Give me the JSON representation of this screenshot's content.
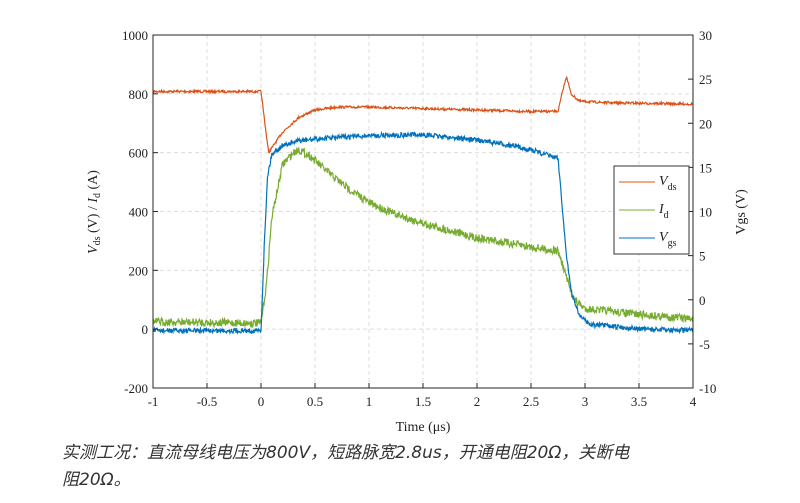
{
  "chart_data": {
    "type": "line",
    "title": "",
    "xlabel": "Time (μs)",
    "ylabel_left": "Vds (V) / Id (A)",
    "ylabel_right": "Vgs (V)",
    "xlim": [
      -1,
      4
    ],
    "ylim_left": [
      -200,
      1000
    ],
    "ylim_right": [
      -10,
      30
    ],
    "xticks": [
      "-1",
      "-0.5",
      "0",
      "0.5",
      "1",
      "1.5",
      "2",
      "2.5",
      "3",
      "3.5",
      "4"
    ],
    "yticks_left": [
      "-200",
      "0",
      "200",
      "400",
      "600",
      "800",
      "1000"
    ],
    "yticks_right": [
      "-10",
      "-5",
      "0",
      "5",
      "10",
      "15",
      "20",
      "25",
      "30"
    ],
    "grid": true,
    "legend_placement": "right",
    "series": [
      {
        "name": "Vds",
        "axis": "left",
        "color": "#d95319",
        "x": [
          -1,
          0,
          0.07,
          0.2,
          0.35,
          0.5,
          0.7,
          1,
          1.5,
          2,
          2.5,
          2.75,
          2.8,
          2.83,
          2.87,
          2.95,
          3.2,
          4
        ],
        "y": [
          808,
          808,
          600,
          670,
          720,
          745,
          755,
          755,
          750,
          745,
          740,
          740,
          820,
          860,
          800,
          775,
          770,
          765
        ]
      },
      {
        "name": "Id",
        "axis": "left",
        "color": "#77ac30",
        "x": [
          -1,
          0,
          0.05,
          0.1,
          0.2,
          0.3,
          0.35,
          0.45,
          0.6,
          0.8,
          1,
          1.25,
          1.5,
          1.75,
          2,
          2.25,
          2.5,
          2.75,
          2.8,
          2.85,
          2.9,
          3,
          3.25,
          3.5,
          4
        ],
        "y": [
          25,
          20,
          150,
          380,
          560,
          600,
          610,
          590,
          540,
          480,
          430,
          390,
          360,
          335,
          310,
          295,
          280,
          265,
          210,
          150,
          100,
          70,
          60,
          50,
          35
        ]
      },
      {
        "name": "Vgs",
        "axis": "right",
        "color": "#0072bd",
        "x": [
          -1,
          0,
          0.03,
          0.06,
          0.1,
          0.2,
          0.35,
          0.6,
          1,
          1.5,
          2,
          2.3,
          2.5,
          2.75,
          2.78,
          2.82,
          2.87,
          2.95,
          3.05,
          3.5,
          4
        ],
        "y": [
          -3.5,
          -3.5,
          6,
          14,
          16.5,
          17.5,
          18,
          18.3,
          18.6,
          18.7,
          18.1,
          17.5,
          17,
          16,
          12,
          6,
          1,
          -1.8,
          -2.8,
          -3.3,
          -3.5
        ]
      }
    ],
    "legend": [
      "V_ds",
      "I_d",
      "V_gs"
    ]
  },
  "caption": {
    "line1": "实测工况：直流母线电压为800V，短路脉宽2.8us，开通电阻20Ω，关断电",
    "line2": "阻20Ω。"
  }
}
